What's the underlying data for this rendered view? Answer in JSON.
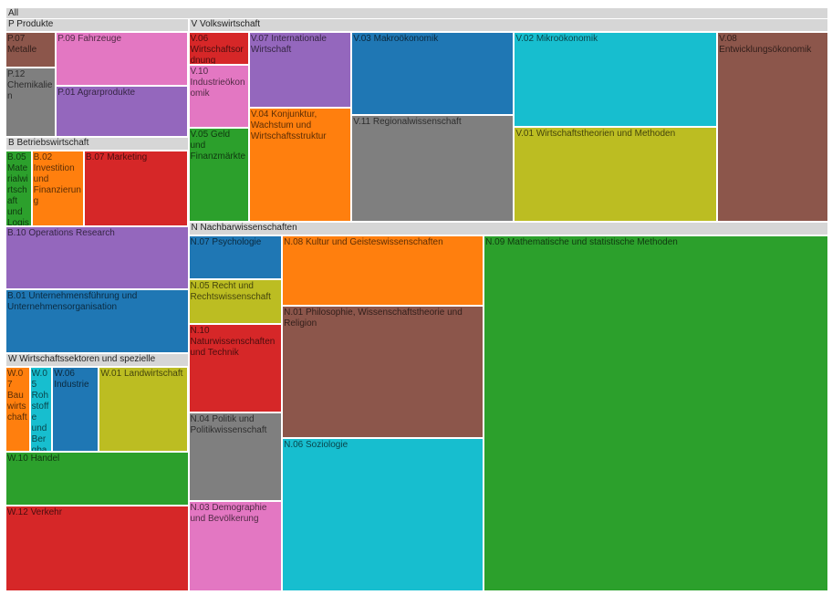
{
  "chart_data": {
    "type": "treemap",
    "title": "All",
    "groups": [
      {
        "name": "P Produkte",
        "children": [
          {
            "name": "P.07 Metalle",
            "value": 23,
            "color": "#8c564b"
          },
          {
            "name": "P.12 Chemikalien",
            "value": 45,
            "color": "#7f7f7f"
          },
          {
            "name": "P.09 Fahrzeuge",
            "value": 92,
            "color": "#e377c2"
          },
          {
            "name": "P.01 Agrarprodukte",
            "value": 87,
            "color": "#9467bd"
          }
        ]
      },
      {
        "name": "B Betriebswirtschaft",
        "children": [
          {
            "name": "B.05 Materialwirtschaft und Logistik",
            "value": 24,
            "color": "#2ca02c"
          },
          {
            "name": "B.02 Investition und Finanzierung",
            "value": 48,
            "color": "#ff7f0e"
          },
          {
            "name": "B.07 Marketing",
            "value": 96,
            "color": "#d62728"
          },
          {
            "name": "B.10 Operations Research",
            "value": 141,
            "color": "#9467bd"
          },
          {
            "name": "B.01 Unternehmensführung und Unternehmensorganisation",
            "value": 141,
            "color": "#1f77b4"
          }
        ]
      },
      {
        "name": "W Wirtschaftssektoren und spezielle",
        "children": [
          {
            "name": "W.07 Bauwirtschaft",
            "value": 25,
            "color": "#ff7f0e"
          },
          {
            "name": "W.05 Rohstoffe und Bergbau",
            "value": 23,
            "color": "#17becf"
          },
          {
            "name": "W.06 Industrie",
            "value": 48,
            "color": "#1f77b4"
          },
          {
            "name": "W.01 Landwirtschaft",
            "value": 92,
            "color": "#bcbd22"
          },
          {
            "name": "W.10 Handel",
            "value": 118,
            "color": "#2ca02c"
          },
          {
            "name": "W.12 Verkehr",
            "value": 190,
            "color": "#d62728"
          }
        ]
      },
      {
        "name": "V Volkswirtschaft",
        "children": [
          {
            "name": "V.06 Wirtschaftsordnung",
            "value": 24,
            "color": "#d62728"
          },
          {
            "name": "V.10 Industrieökonomik",
            "value": 47,
            "color": "#e377c2"
          },
          {
            "name": "V.05 Geld und Finanzmärkte",
            "value": 69,
            "color": "#2ca02c"
          },
          {
            "name": "V.07 Internationale Wirtschaft",
            "value": 95,
            "color": "#9467bd"
          },
          {
            "name": "V.04 Konjunktur, Wachstum und Wirtschaftsstruktur",
            "value": 142,
            "color": "#ff7f0e"
          },
          {
            "name": "V.03 Makroökonomik",
            "value": 165,
            "color": "#1f77b4"
          },
          {
            "name": "V.11 Regionalwissenschaft",
            "value": 211,
            "color": "#7f7f7f"
          },
          {
            "name": "V.02 Mikroökonomik",
            "value": 235,
            "color": "#17becf"
          },
          {
            "name": "V.01 Wirtschaftstheorien und Methoden",
            "value": 235,
            "color": "#bcbd22"
          },
          {
            "name": "V.08 Entwicklungsökonomik",
            "value": 257,
            "color": "#8c564b"
          }
        ]
      },
      {
        "name": "N Nachbarwissenschaften",
        "children": [
          {
            "name": "N.07 Psychologie",
            "value": 49,
            "color": "#1f77b4"
          },
          {
            "name": "N.05 Recht und Rechtswissenschaft",
            "value": 49,
            "color": "#bcbd22"
          },
          {
            "name": "N.10 Naturwissenschaften und Technik",
            "value": 98,
            "color": "#d62728"
          },
          {
            "name": "N.04 Politik und Politikwissenschaft",
            "value": 98,
            "color": "#7f7f7f"
          },
          {
            "name": "N.03 Demographie und Bevölkerung",
            "value": 100,
            "color": "#e377c2"
          },
          {
            "name": "N.08 Kultur und Geisteswissenschaften",
            "value": 169,
            "color": "#ff7f0e"
          },
          {
            "name": "N.01 Philosophie, Wissenschaftstheorie und Religion",
            "value": 315,
            "color": "#8c564b"
          },
          {
            "name": "N.06 Soziologie",
            "value": 365,
            "color": "#17becf"
          },
          {
            "name": "N.09 Mathematische und statistische Methoden",
            "value": 1451,
            "color": "#2ca02c"
          }
        ]
      }
    ]
  }
}
